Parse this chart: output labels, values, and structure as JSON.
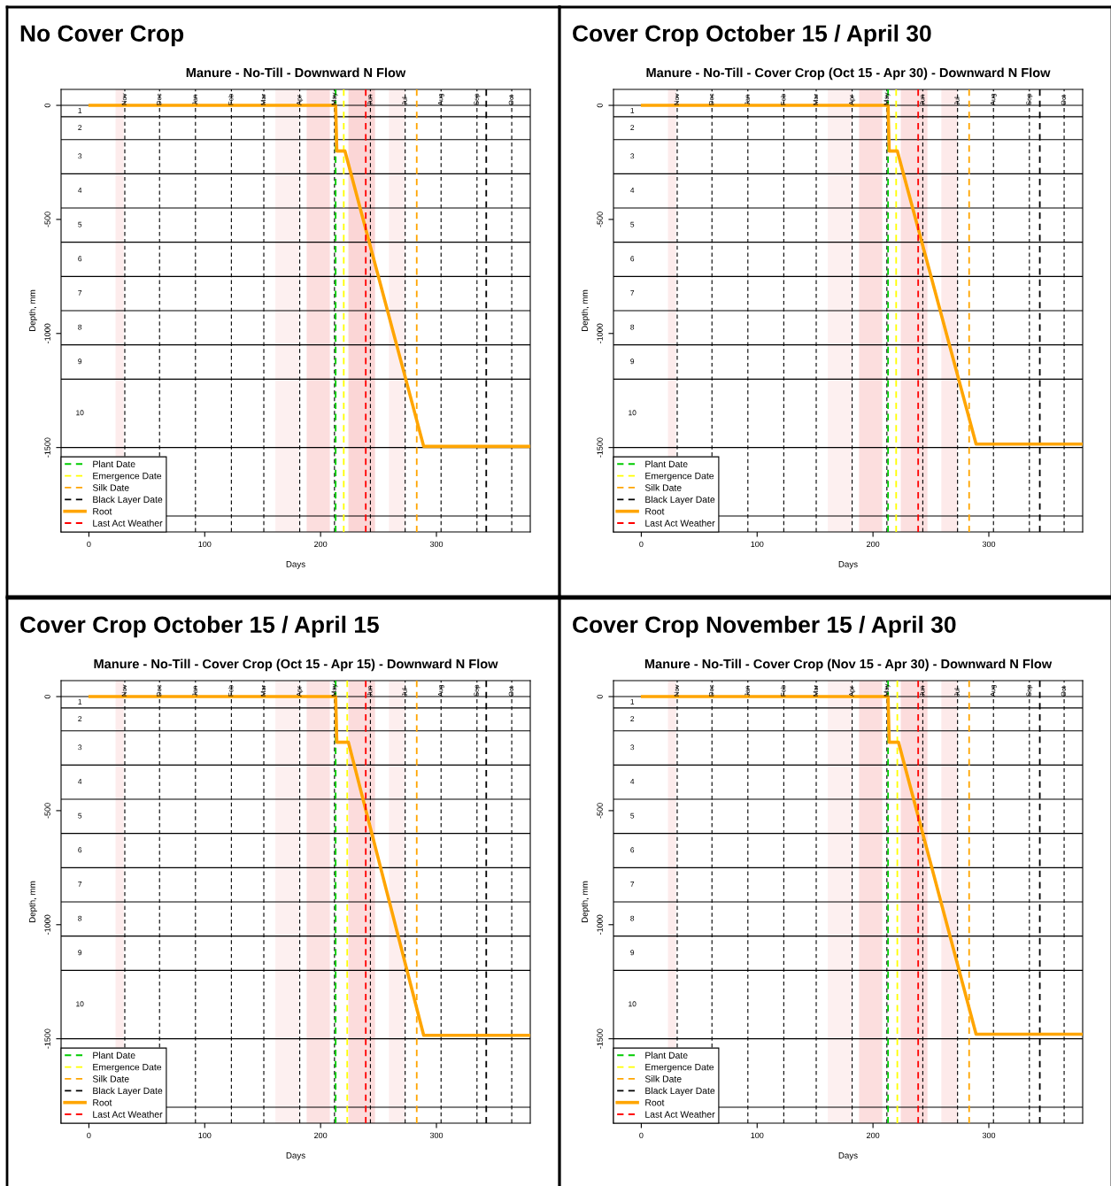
{
  "chart_data": [
    {
      "type": "line",
      "title": "No Cover Crop",
      "subtitle": "Manure - No-Till - Downward N Flow",
      "xlabel": "Days",
      "ylabel": "Depth, mm",
      "xlim": [
        -24,
        381
      ],
      "xticks": [
        0,
        100,
        200,
        300
      ],
      "ylim": [
        -1870,
        70
      ],
      "yticks": [
        0,
        {
          "value": -500,
          "label": "-500"
        },
        {
          "value": -1000,
          "label": "-1000"
        },
        {
          "value": -1500,
          "label": "-1500"
        }
      ],
      "grid": false,
      "legend": "bottom left",
      "series": [
        {
          "name": "Plant Date",
          "x": [
            213,
            213
          ],
          "values": [
            70,
            -1870
          ],
          "color": "#00cc00",
          "line_style": "dashed"
        },
        {
          "name": "Emergence Date",
          "x": [
            220,
            220
          ],
          "values": [
            70,
            -1870
          ],
          "color": "#ffff00",
          "line_style": "dashed"
        },
        {
          "name": "Silk Date",
          "x": [
            283,
            283
          ],
          "values": [
            70,
            -1870
          ],
          "color": "#ffa500",
          "line_style": "dashed"
        },
        {
          "name": "Black Layer Date",
          "x": [
            343,
            343
          ],
          "values": [
            70,
            -1870
          ],
          "color": "#000000",
          "line_style": "dashed"
        },
        {
          "name": "Root",
          "x": [
            1,
            213,
            214,
            221,
            289,
            381
          ],
          "values": [
            0,
            0,
            -200,
            -200,
            -1495,
            -1495
          ],
          "color": "#ffa500",
          "line_style": "solid"
        },
        {
          "name": "Last Act Weather",
          "x": [
            239,
            239
          ],
          "values": [
            70,
            -1870
          ],
          "color": "#ff0000",
          "line_style": "dashed"
        }
      ],
      "ref_lines": [
        {
          "axis": "x",
          "value": 31,
          "label": "Nov",
          "color": "#000000",
          "line_style": "dashed"
        },
        {
          "axis": "x",
          "value": 61,
          "label": "Dec",
          "color": "#000000",
          "line_style": "dashed"
        },
        {
          "axis": "x",
          "value": 92,
          "label": "Jan",
          "color": "#000000",
          "line_style": "dashed"
        },
        {
          "axis": "x",
          "value": 123,
          "label": "Feb",
          "color": "#000000",
          "line_style": "dashed"
        },
        {
          "axis": "x",
          "value": 151,
          "label": "Mar",
          "color": "#000000",
          "line_style": "dashed"
        },
        {
          "axis": "x",
          "value": 182,
          "label": "Apr",
          "color": "#000000",
          "line_style": "dashed"
        },
        {
          "axis": "x",
          "value": 212,
          "label": "May",
          "color": "#000000",
          "line_style": "dashed"
        },
        {
          "axis": "x",
          "value": 243,
          "label": "Jun",
          "color": "#000000",
          "line_style": "dashed"
        },
        {
          "axis": "x",
          "value": 273,
          "label": "Jul",
          "color": "#000000",
          "line_style": "dashed"
        },
        {
          "axis": "x",
          "value": 304,
          "label": "Aug",
          "color": "#000000",
          "line_style": "dashed"
        },
        {
          "axis": "x",
          "value": 335,
          "label": "Sep",
          "color": "#000000",
          "line_style": "dashed"
        },
        {
          "axis": "x",
          "value": 365,
          "label": "Oct",
          "color": "#000000",
          "line_style": "dashed"
        },
        {
          "axis": "y",
          "value": 0,
          "color": "#000000",
          "line_style": "solid"
        },
        {
          "axis": "y",
          "value": -50,
          "color": "#000000",
          "line_style": "solid"
        },
        {
          "axis": "y",
          "value": -150,
          "color": "#000000",
          "line_style": "solid"
        },
        {
          "axis": "y",
          "value": -300,
          "color": "#000000",
          "line_style": "solid"
        },
        {
          "axis": "y",
          "value": -450,
          "color": "#000000",
          "line_style": "solid"
        },
        {
          "axis": "y",
          "value": -600,
          "color": "#000000",
          "line_style": "solid"
        },
        {
          "axis": "y",
          "value": -750,
          "color": "#000000",
          "line_style": "solid"
        },
        {
          "axis": "y",
          "value": -900,
          "color": "#000000",
          "line_style": "solid"
        },
        {
          "axis": "y",
          "value": -1050,
          "color": "#000000",
          "line_style": "solid"
        },
        {
          "axis": "y",
          "value": -1200,
          "color": "#000000",
          "line_style": "solid"
        },
        {
          "axis": "y",
          "value": -1500,
          "color": "#000000",
          "line_style": "solid"
        },
        {
          "axis": "y",
          "value": -1800,
          "color": "#000000",
          "line_style": "solid"
        }
      ],
      "bands": [
        {
          "axis": "x",
          "from": 23,
          "to": 30,
          "color": "#fdecec"
        },
        {
          "axis": "x",
          "from": 161,
          "to": 182,
          "color": "#fdf0f0"
        },
        {
          "axis": "x",
          "from": 188,
          "to": 208,
          "color": "#fcdede"
        },
        {
          "axis": "x",
          "from": 224,
          "to": 247,
          "color": "#fbd6d6"
        },
        {
          "axis": "x",
          "from": 259,
          "to": 273,
          "color": "#fdeeee"
        }
      ],
      "annotations": [
        "1",
        "2",
        "3",
        "4",
        "5",
        "6",
        "7",
        "8",
        "9",
        "10"
      ]
    },
    {
      "type": "line",
      "title": "Cover Crop October 15 / April 30",
      "subtitle": "Manure - No-Till - Cover Crop (Oct 15 - Apr 30) - Downward N Flow",
      "xlabel": "Days",
      "ylabel": "Depth, mm",
      "xlim": [
        -24,
        381
      ],
      "xticks": [
        0,
        100,
        200,
        300
      ],
      "ylim": [
        -1870,
        70
      ],
      "yticks": [
        0,
        {
          "value": -500,
          "label": "-500"
        },
        {
          "value": -1000,
          "label": "-1000"
        },
        {
          "value": -1500,
          "label": "-1500"
        }
      ],
      "grid": false,
      "legend": "bottom left",
      "series": [
        {
          "name": "Plant Date",
          "x": [
            213,
            213
          ],
          "values": [
            70,
            -1870
          ],
          "color": "#00cc00",
          "line_style": "dashed"
        },
        {
          "name": "Emergence Date",
          "x": [
            220,
            220
          ],
          "values": [
            70,
            -1870
          ],
          "color": "#ffff00",
          "line_style": "dashed"
        },
        {
          "name": "Silk Date",
          "x": [
            283,
            283
          ],
          "values": [
            70,
            -1870
          ],
          "color": "#ffa500",
          "line_style": "dashed"
        },
        {
          "name": "Black Layer Date",
          "x": [
            344,
            344
          ],
          "values": [
            70,
            -1870
          ],
          "color": "#000000",
          "line_style": "dashed"
        },
        {
          "name": "Root",
          "x": [
            1,
            213,
            214,
            221,
            289,
            381
          ],
          "values": [
            0,
            0,
            -200,
            -200,
            -1485,
            -1485
          ],
          "color": "#ffa500",
          "line_style": "solid"
        },
        {
          "name": "Last Act Weather",
          "x": [
            239,
            239
          ],
          "values": [
            70,
            -1870
          ],
          "color": "#ff0000",
          "line_style": "dashed"
        }
      ],
      "ref_lines": [
        {
          "axis": "x",
          "value": 31,
          "label": "Nov",
          "color": "#000000",
          "line_style": "dashed"
        },
        {
          "axis": "x",
          "value": 61,
          "label": "Dec",
          "color": "#000000",
          "line_style": "dashed"
        },
        {
          "axis": "x",
          "value": 92,
          "label": "Jan",
          "color": "#000000",
          "line_style": "dashed"
        },
        {
          "axis": "x",
          "value": 123,
          "label": "Feb",
          "color": "#000000",
          "line_style": "dashed"
        },
        {
          "axis": "x",
          "value": 151,
          "label": "Mar",
          "color": "#000000",
          "line_style": "dashed"
        },
        {
          "axis": "x",
          "value": 182,
          "label": "Apr",
          "color": "#000000",
          "line_style": "dashed"
        },
        {
          "axis": "x",
          "value": 212,
          "label": "May",
          "color": "#000000",
          "line_style": "dashed"
        },
        {
          "axis": "x",
          "value": 243,
          "label": "Jun",
          "color": "#000000",
          "line_style": "dashed"
        },
        {
          "axis": "x",
          "value": 273,
          "label": "Jul",
          "color": "#000000",
          "line_style": "dashed"
        },
        {
          "axis": "x",
          "value": 304,
          "label": "Aug",
          "color": "#000000",
          "line_style": "dashed"
        },
        {
          "axis": "x",
          "value": 335,
          "label": "Sep",
          "color": "#000000",
          "line_style": "dashed"
        },
        {
          "axis": "x",
          "value": 365,
          "label": "Oct",
          "color": "#000000",
          "line_style": "dashed"
        },
        {
          "axis": "y",
          "value": 0,
          "color": "#000000",
          "line_style": "solid"
        },
        {
          "axis": "y",
          "value": -50,
          "color": "#000000",
          "line_style": "solid"
        },
        {
          "axis": "y",
          "value": -150,
          "color": "#000000",
          "line_style": "solid"
        },
        {
          "axis": "y",
          "value": -300,
          "color": "#000000",
          "line_style": "solid"
        },
        {
          "axis": "y",
          "value": -450,
          "color": "#000000",
          "line_style": "solid"
        },
        {
          "axis": "y",
          "value": -600,
          "color": "#000000",
          "line_style": "solid"
        },
        {
          "axis": "y",
          "value": -750,
          "color": "#000000",
          "line_style": "solid"
        },
        {
          "axis": "y",
          "value": -900,
          "color": "#000000",
          "line_style": "solid"
        },
        {
          "axis": "y",
          "value": -1050,
          "color": "#000000",
          "line_style": "solid"
        },
        {
          "axis": "y",
          "value": -1200,
          "color": "#000000",
          "line_style": "solid"
        },
        {
          "axis": "y",
          "value": -1500,
          "color": "#000000",
          "line_style": "solid"
        },
        {
          "axis": "y",
          "value": -1800,
          "color": "#000000",
          "line_style": "solid"
        }
      ],
      "bands": [
        {
          "axis": "x",
          "from": 23,
          "to": 30,
          "color": "#fdecec"
        },
        {
          "axis": "x",
          "from": 161,
          "to": 182,
          "color": "#fdf0f0"
        },
        {
          "axis": "x",
          "from": 188,
          "to": 208,
          "color": "#fcdede"
        },
        {
          "axis": "x",
          "from": 224,
          "to": 247,
          "color": "#fce0e0"
        },
        {
          "axis": "x",
          "from": 259,
          "to": 273,
          "color": "#fdeaea"
        }
      ],
      "annotations": [
        "1",
        "2",
        "3",
        "4",
        "5",
        "6",
        "7",
        "8",
        "9",
        "10"
      ]
    },
    {
      "type": "line",
      "title": "Cover Crop October 15 / April 15",
      "subtitle": "Manure - No-Till - Cover Crop (Oct 15 - Apr 15) - Downward N Flow",
      "xlabel": "Days",
      "ylabel": "Depth, mm",
      "xlim": [
        -24,
        381
      ],
      "xticks": [
        0,
        100,
        200,
        300
      ],
      "ylim": [
        -1870,
        70
      ],
      "yticks": [
        0,
        {
          "value": -500,
          "label": "-500"
        },
        {
          "value": -1000,
          "label": "-1000"
        },
        {
          "value": -1500,
          "label": "-1500"
        }
      ],
      "grid": false,
      "legend": "bottom left",
      "series": [
        {
          "name": "Plant Date",
          "x": [
            213,
            213
          ],
          "values": [
            70,
            -1870
          ],
          "color": "#00cc00",
          "line_style": "dashed"
        },
        {
          "name": "Emergence Date",
          "x": [
            223,
            223
          ],
          "values": [
            70,
            -1870
          ],
          "color": "#ffff00",
          "line_style": "dashed"
        },
        {
          "name": "Silk Date",
          "x": [
            283,
            283
          ],
          "values": [
            70,
            -1870
          ],
          "color": "#ffa500",
          "line_style": "dashed"
        },
        {
          "name": "Black Layer Date",
          "x": [
            343,
            343
          ],
          "values": [
            70,
            -1870
          ],
          "color": "#000000",
          "line_style": "dashed"
        },
        {
          "name": "Root",
          "x": [
            1,
            213,
            214,
            224,
            289,
            381
          ],
          "values": [
            0,
            0,
            -200,
            -200,
            -1485,
            -1485
          ],
          "color": "#ffa500",
          "line_style": "solid"
        },
        {
          "name": "Last Act Weather",
          "x": [
            239,
            239
          ],
          "values": [
            70,
            -1870
          ],
          "color": "#ff0000",
          "line_style": "dashed"
        }
      ],
      "ref_lines": [
        {
          "axis": "x",
          "value": 31,
          "label": "Nov",
          "color": "#000000",
          "line_style": "dashed"
        },
        {
          "axis": "x",
          "value": 61,
          "label": "Dec",
          "color": "#000000",
          "line_style": "dashed"
        },
        {
          "axis": "x",
          "value": 92,
          "label": "Jan",
          "color": "#000000",
          "line_style": "dashed"
        },
        {
          "axis": "x",
          "value": 123,
          "label": "Feb",
          "color": "#000000",
          "line_style": "dashed"
        },
        {
          "axis": "x",
          "value": 151,
          "label": "Mar",
          "color": "#000000",
          "line_style": "dashed"
        },
        {
          "axis": "x",
          "value": 182,
          "label": "Apr",
          "color": "#000000",
          "line_style": "dashed"
        },
        {
          "axis": "x",
          "value": 212,
          "label": "May",
          "color": "#000000",
          "line_style": "dashed"
        },
        {
          "axis": "x",
          "value": 243,
          "label": "Jun",
          "color": "#000000",
          "line_style": "dashed"
        },
        {
          "axis": "x",
          "value": 273,
          "label": "Jul",
          "color": "#000000",
          "line_style": "dashed"
        },
        {
          "axis": "x",
          "value": 304,
          "label": "Aug",
          "color": "#000000",
          "line_style": "dashed"
        },
        {
          "axis": "x",
          "value": 335,
          "label": "Sep",
          "color": "#000000",
          "line_style": "dashed"
        },
        {
          "axis": "x",
          "value": 365,
          "label": "Oct",
          "color": "#000000",
          "line_style": "dashed"
        },
        {
          "axis": "y",
          "value": 0,
          "color": "#000000",
          "line_style": "solid"
        },
        {
          "axis": "y",
          "value": -50,
          "color": "#000000",
          "line_style": "solid"
        },
        {
          "axis": "y",
          "value": -150,
          "color": "#000000",
          "line_style": "solid"
        },
        {
          "axis": "y",
          "value": -300,
          "color": "#000000",
          "line_style": "solid"
        },
        {
          "axis": "y",
          "value": -450,
          "color": "#000000",
          "line_style": "solid"
        },
        {
          "axis": "y",
          "value": -600,
          "color": "#000000",
          "line_style": "solid"
        },
        {
          "axis": "y",
          "value": -750,
          "color": "#000000",
          "line_style": "solid"
        },
        {
          "axis": "y",
          "value": -900,
          "color": "#000000",
          "line_style": "solid"
        },
        {
          "axis": "y",
          "value": -1050,
          "color": "#000000",
          "line_style": "solid"
        },
        {
          "axis": "y",
          "value": -1200,
          "color": "#000000",
          "line_style": "solid"
        },
        {
          "axis": "y",
          "value": -1500,
          "color": "#000000",
          "line_style": "solid"
        },
        {
          "axis": "y",
          "value": -1800,
          "color": "#000000",
          "line_style": "solid"
        }
      ],
      "bands": [
        {
          "axis": "x",
          "from": 23,
          "to": 30,
          "color": "#fdecec"
        },
        {
          "axis": "x",
          "from": 161,
          "to": 182,
          "color": "#fdf0f0"
        },
        {
          "axis": "x",
          "from": 188,
          "to": 208,
          "color": "#fce2e2"
        },
        {
          "axis": "x",
          "from": 224,
          "to": 247,
          "color": "#fcdcdc"
        },
        {
          "axis": "x",
          "from": 259,
          "to": 273,
          "color": "#fdeeee"
        }
      ],
      "annotations": [
        "1",
        "2",
        "3",
        "4",
        "5",
        "6",
        "7",
        "8",
        "9",
        "10"
      ]
    },
    {
      "type": "line",
      "title": "Cover Crop November 15 / April 30",
      "subtitle": "Manure - No-Till - Cover Crop (Nov 15 - Apr 30) - Downward N Flow",
      "xlabel": "Days",
      "ylabel": "Depth, mm",
      "xlim": [
        -24,
        381
      ],
      "xticks": [
        0,
        100,
        200,
        300
      ],
      "ylim": [
        -1870,
        70
      ],
      "yticks": [
        0,
        {
          "value": -500,
          "label": "-500"
        },
        {
          "value": -1000,
          "label": "-1000"
        },
        {
          "value": -1500,
          "label": "-1500"
        }
      ],
      "grid": false,
      "legend": "bottom left",
      "series": [
        {
          "name": "Plant Date",
          "x": [
            213,
            213
          ],
          "values": [
            70,
            -1870
          ],
          "color": "#00cc00",
          "line_style": "dashed"
        },
        {
          "name": "Emergence Date",
          "x": [
            221,
            221
          ],
          "values": [
            70,
            -1870
          ],
          "color": "#ffff00",
          "line_style": "dashed"
        },
        {
          "name": "Silk Date",
          "x": [
            283,
            283
          ],
          "values": [
            70,
            -1870
          ],
          "color": "#ffa500",
          "line_style": "dashed"
        },
        {
          "name": "Black Layer Date",
          "x": [
            344,
            344
          ],
          "values": [
            70,
            -1870
          ],
          "color": "#000000",
          "line_style": "dashed"
        },
        {
          "name": "Root",
          "x": [
            1,
            213,
            214,
            222,
            289,
            381
          ],
          "values": [
            0,
            0,
            -200,
            -200,
            -1480,
            -1480
          ],
          "color": "#ffa500",
          "line_style": "solid"
        },
        {
          "name": "Last Act Weather",
          "x": [
            239,
            239
          ],
          "values": [
            70,
            -1870
          ],
          "color": "#ff0000",
          "line_style": "dashed"
        }
      ],
      "ref_lines": [
        {
          "axis": "x",
          "value": 31,
          "label": "Nov",
          "color": "#000000",
          "line_style": "dashed"
        },
        {
          "axis": "x",
          "value": 61,
          "label": "Dec",
          "color": "#000000",
          "line_style": "dashed"
        },
        {
          "axis": "x",
          "value": 92,
          "label": "Jan",
          "color": "#000000",
          "line_style": "dashed"
        },
        {
          "axis": "x",
          "value": 123,
          "label": "Feb",
          "color": "#000000",
          "line_style": "dashed"
        },
        {
          "axis": "x",
          "value": 151,
          "label": "Mar",
          "color": "#000000",
          "line_style": "dashed"
        },
        {
          "axis": "x",
          "value": 182,
          "label": "Apr",
          "color": "#000000",
          "line_style": "dashed"
        },
        {
          "axis": "x",
          "value": 212,
          "label": "May",
          "color": "#000000",
          "line_style": "dashed"
        },
        {
          "axis": "x",
          "value": 243,
          "label": "Jun",
          "color": "#000000",
          "line_style": "dashed"
        },
        {
          "axis": "x",
          "value": 273,
          "label": "Jul",
          "color": "#000000",
          "line_style": "dashed"
        },
        {
          "axis": "x",
          "value": 304,
          "label": "Aug",
          "color": "#000000",
          "line_style": "dashed"
        },
        {
          "axis": "x",
          "value": 335,
          "label": "Sep",
          "color": "#000000",
          "line_style": "dashed"
        },
        {
          "axis": "x",
          "value": 365,
          "label": "Oct",
          "color": "#000000",
          "line_style": "dashed"
        },
        {
          "axis": "y",
          "value": 0,
          "color": "#000000",
          "line_style": "solid"
        },
        {
          "axis": "y",
          "value": -50,
          "color": "#000000",
          "line_style": "solid"
        },
        {
          "axis": "y",
          "value": -150,
          "color": "#000000",
          "line_style": "solid"
        },
        {
          "axis": "y",
          "value": -300,
          "color": "#000000",
          "line_style": "solid"
        },
        {
          "axis": "y",
          "value": -450,
          "color": "#000000",
          "line_style": "solid"
        },
        {
          "axis": "y",
          "value": -600,
          "color": "#000000",
          "line_style": "solid"
        },
        {
          "axis": "y",
          "value": -750,
          "color": "#000000",
          "line_style": "solid"
        },
        {
          "axis": "y",
          "value": -900,
          "color": "#000000",
          "line_style": "solid"
        },
        {
          "axis": "y",
          "value": -1050,
          "color": "#000000",
          "line_style": "solid"
        },
        {
          "axis": "y",
          "value": -1200,
          "color": "#000000",
          "line_style": "solid"
        },
        {
          "axis": "y",
          "value": -1500,
          "color": "#000000",
          "line_style": "solid"
        },
        {
          "axis": "y",
          "value": -1800,
          "color": "#000000",
          "line_style": "solid"
        }
      ],
      "bands": [
        {
          "axis": "x",
          "from": 23,
          "to": 30,
          "color": "#fdecec"
        },
        {
          "axis": "x",
          "from": 161,
          "to": 182,
          "color": "#fdf0f0"
        },
        {
          "axis": "x",
          "from": 188,
          "to": 208,
          "color": "#fcdede"
        },
        {
          "axis": "x",
          "from": 224,
          "to": 247,
          "color": "#fcdcdc"
        },
        {
          "axis": "x",
          "from": 259,
          "to": 273,
          "color": "#fdeaea"
        }
      ],
      "annotations": [
        "1",
        "2",
        "3",
        "4",
        "5",
        "6",
        "7",
        "8",
        "9",
        "10"
      ]
    }
  ]
}
